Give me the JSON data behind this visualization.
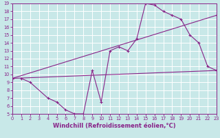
{
  "xlabel": "Windchill (Refroidissement éolien,°C)",
  "bg_color": "#c8e8e8",
  "grid_color": "#ffffff",
  "line_color": "#882288",
  "xlim": [
    0,
    23
  ],
  "ylim": [
    5,
    19
  ],
  "xticks": [
    0,
    1,
    2,
    3,
    4,
    5,
    6,
    7,
    8,
    9,
    10,
    11,
    12,
    13,
    14,
    15,
    16,
    17,
    18,
    19,
    20,
    21,
    22,
    23
  ],
  "yticks": [
    5,
    6,
    7,
    8,
    9,
    10,
    11,
    12,
    13,
    14,
    15,
    16,
    17,
    18,
    19
  ],
  "line1_x": [
    1,
    2,
    4,
    5,
    6,
    7,
    8,
    9,
    10,
    11,
    12,
    13,
    14,
    15,
    16,
    17,
    18,
    19,
    20,
    21,
    22,
    23
  ],
  "line1_y": [
    9.5,
    9.0,
    7.0,
    6.5,
    5.5,
    5.0,
    5.0,
    10.5,
    6.5,
    13.0,
    13.5,
    13.0,
    14.5,
    19.0,
    18.8,
    18.0,
    17.5,
    17.0,
    15.0,
    14.0,
    11.0,
    10.5
  ],
  "line2_x": [
    0,
    23
  ],
  "line2_y": [
    9.5,
    10.5
  ],
  "line3_x": [
    0,
    23
  ],
  "line3_y": [
    9.5,
    17.5
  ],
  "tick_fontsize": 4.8,
  "xlabel_fontsize": 6.0
}
